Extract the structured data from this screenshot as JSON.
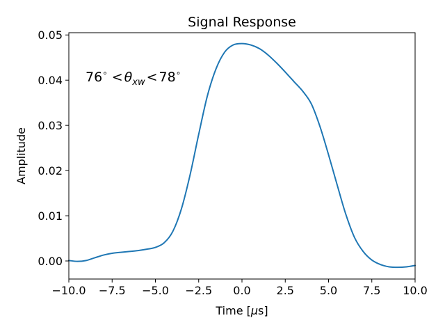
{
  "chart_data": {
    "type": "line",
    "title": "Signal Response",
    "xlabel_pre": "Time [",
    "xlabel_mu": "μ",
    "xlabel_post": "s]",
    "ylabel": "Amplitude",
    "xlim": [
      -10.0,
      10.0
    ],
    "ylim": [
      -0.004,
      0.0505
    ],
    "xticks": [
      -10.0,
      -7.5,
      -5.0,
      -2.5,
      0.0,
      2.5,
      5.0,
      7.5,
      10.0
    ],
    "xtick_labels": [
      "−10.0",
      "−7.5",
      "−5.0",
      "−2.5",
      "0.0",
      "2.5",
      "5.0",
      "7.5",
      "10.0"
    ],
    "yticks": [
      0.0,
      0.01,
      0.02,
      0.03,
      0.04,
      0.05
    ],
    "ytick_labels": [
      "0.00",
      "0.01",
      "0.02",
      "0.03",
      "0.04",
      "0.05"
    ],
    "grid": false,
    "annotation": {
      "left": "76",
      "theta": "θ",
      "sub": "xw",
      "right": "78",
      "deg": "∘",
      "lt": "<"
    },
    "series": [
      {
        "color": "#1f77b4",
        "x": [
          -10.0,
          -9.5,
          -9.0,
          -8.5,
          -8.0,
          -7.5,
          -7.0,
          -6.5,
          -6.0,
          -5.5,
          -5.0,
          -4.5,
          -4.0,
          -3.5,
          -3.0,
          -2.5,
          -2.0,
          -1.5,
          -1.0,
          -0.5,
          0.0,
          0.5,
          1.0,
          1.5,
          2.0,
          2.5,
          3.0,
          3.5,
          4.0,
          4.5,
          5.0,
          5.5,
          6.0,
          6.5,
          7.0,
          7.5,
          8.0,
          8.5,
          9.0,
          9.5,
          10.0
        ],
        "y": [
          0.0001,
          -0.0001,
          0.0001,
          0.0007,
          0.0013,
          0.0017,
          0.0019,
          0.0021,
          0.0023,
          0.0026,
          0.003,
          0.004,
          0.0065,
          0.0115,
          0.019,
          0.028,
          0.0365,
          0.0425,
          0.0462,
          0.0478,
          0.0481,
          0.0478,
          0.047,
          0.0456,
          0.0438,
          0.0418,
          0.0397,
          0.0376,
          0.0348,
          0.0298,
          0.0235,
          0.0168,
          0.0103,
          0.0052,
          0.0021,
          0.0002,
          -0.0008,
          -0.0013,
          -0.0014,
          -0.0013,
          -0.001
        ]
      }
    ]
  }
}
